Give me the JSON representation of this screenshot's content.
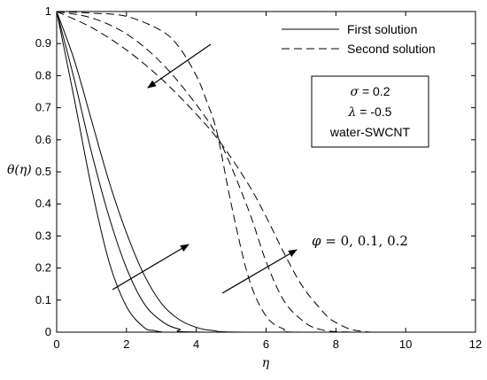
{
  "chart_data": {
    "type": "line",
    "xlabel": "η",
    "ylabel": "θ(η)",
    "xlim": [
      0,
      12
    ],
    "ylim": [
      0,
      1
    ],
    "xticks": [
      "0",
      "2",
      "4",
      "6",
      "8",
      "10",
      "12"
    ],
    "yticks": [
      "0",
      "0.1",
      "0.2",
      "0.3",
      "0.4",
      "0.5",
      "0.6",
      "0.7",
      "0.8",
      "0.9",
      "1"
    ],
    "grid": false,
    "legend": {
      "placement": "top-right",
      "entries": [
        {
          "label": "First solution",
          "style": "solid"
        },
        {
          "label": "Second solution",
          "style": "dashed"
        }
      ]
    },
    "parameters": {
      "sigma_symbol": "σ",
      "sigma_text": " = 0.2",
      "lambda_symbol": "λ",
      "lambda_text": " = -0.5",
      "fluid": "water-SWCNT"
    },
    "annotation": {
      "symbol": "φ",
      "text": " = 0, 0.1, 0.2"
    },
    "series": [
      {
        "solution": "first",
        "phi": 0,
        "style": "solid",
        "x": [
          0,
          0.5,
          1,
          1.5,
          2,
          2.5,
          2.8,
          3.0,
          3.3,
          12
        ],
        "y": [
          1,
          0.73,
          0.45,
          0.22,
          0.08,
          0.015,
          0.005,
          0.001,
          0,
          0
        ]
      },
      {
        "solution": "first",
        "phi": 0.1,
        "style": "solid",
        "x": [
          0,
          0.5,
          1,
          1.5,
          2,
          2.5,
          3,
          3.5,
          4.3,
          12
        ],
        "y": [
          1,
          0.79,
          0.56,
          0.36,
          0.2,
          0.09,
          0.035,
          0.01,
          0,
          0
        ]
      },
      {
        "solution": "first",
        "phi": 0.2,
        "style": "solid",
        "x": [
          0,
          0.5,
          1,
          1.5,
          2,
          2.5,
          3,
          3.5,
          4,
          4.5,
          5.5,
          12
        ],
        "y": [
          1,
          0.85,
          0.66,
          0.47,
          0.31,
          0.18,
          0.09,
          0.04,
          0.015,
          0.005,
          0,
          0
        ]
      },
      {
        "solution": "second",
        "phi": 0,
        "style": "dashed",
        "x": [
          0,
          1,
          2,
          3,
          3.5,
          4,
          4.3,
          4.6,
          5,
          5.5,
          6,
          6.5,
          7,
          12
        ],
        "y": [
          1,
          0.995,
          0.985,
          0.94,
          0.89,
          0.8,
          0.72,
          0.62,
          0.4,
          0.17,
          0.05,
          0.01,
          0,
          0
        ]
      },
      {
        "solution": "second",
        "phi": 0.1,
        "style": "dashed",
        "x": [
          0,
          1,
          2,
          3,
          4,
          4.7,
          5.5,
          6,
          6.5,
          7,
          7.5,
          8.5,
          12
        ],
        "y": [
          1,
          0.98,
          0.93,
          0.84,
          0.71,
          0.59,
          0.38,
          0.22,
          0.1,
          0.04,
          0.01,
          0,
          0
        ]
      },
      {
        "solution": "second",
        "phi": 0.2,
        "style": "dashed",
        "x": [
          0,
          1,
          2,
          3,
          4,
          4.7,
          5.5,
          6,
          6.5,
          7,
          7.5,
          8,
          9,
          12
        ],
        "y": [
          1,
          0.95,
          0.88,
          0.79,
          0.68,
          0.59,
          0.46,
          0.36,
          0.25,
          0.15,
          0.08,
          0.03,
          0,
          0
        ]
      }
    ]
  }
}
